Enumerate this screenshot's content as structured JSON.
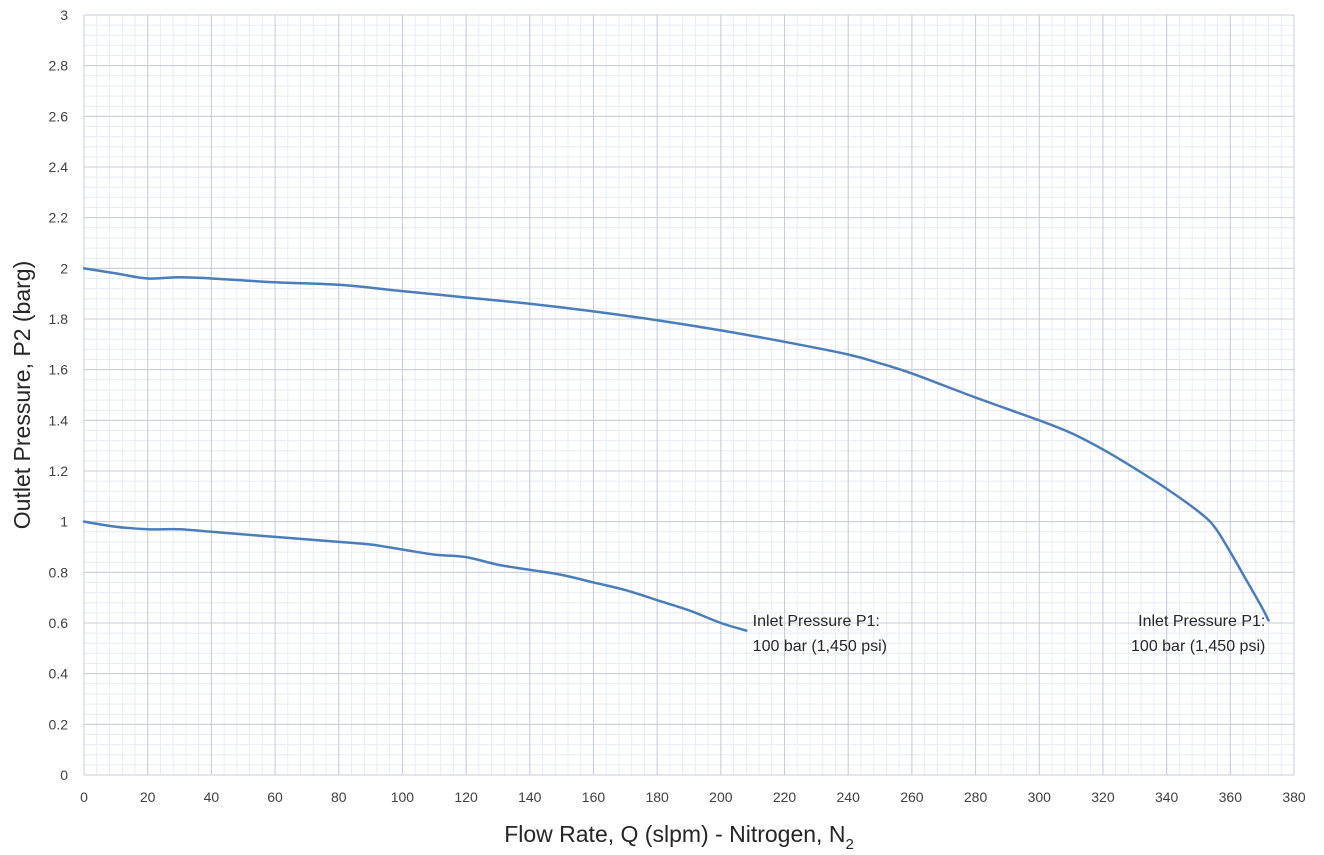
{
  "chart_data": {
    "type": "line",
    "title": "",
    "xlabel": "Flow Rate, Q (slpm) - Nitrogen, N",
    "xlabel_subscript": "2",
    "ylabel": "Outlet Pressure, P2 (barg)",
    "xlim": [
      0,
      380
    ],
    "ylim": [
      0,
      3
    ],
    "x_ticks": [
      "0",
      "20",
      "40",
      "60",
      "80",
      "100",
      "120",
      "140",
      "160",
      "180",
      "200",
      "220",
      "240",
      "260",
      "280",
      "300",
      "320",
      "340",
      "360",
      "380"
    ],
    "y_ticks": [
      "0",
      "0.2",
      "0.4",
      "0.6",
      "0.8",
      "1",
      "1.2",
      "1.4",
      "1.6",
      "1.8",
      "2",
      "2.2",
      "2.4",
      "2.6",
      "2.8",
      "3"
    ],
    "x_tick_values": [
      0,
      20,
      40,
      60,
      80,
      100,
      120,
      140,
      160,
      180,
      200,
      220,
      240,
      260,
      280,
      300,
      320,
      340,
      360,
      380
    ],
    "y_tick_values": [
      0,
      0.2,
      0.4,
      0.6,
      0.8,
      1,
      1.2,
      1.4,
      1.6,
      1.8,
      2,
      2.2,
      2.4,
      2.6,
      2.8,
      3
    ],
    "grid": true,
    "minor_grid": true,
    "legend": "none",
    "series_color": "#4a7ebb",
    "series": [
      {
        "x": [
          0,
          10,
          20,
          30,
          40,
          60,
          80,
          100,
          120,
          140,
          160,
          180,
          200,
          220,
          240,
          250,
          260,
          280,
          300,
          310,
          320,
          330,
          340,
          350,
          355,
          360,
          365,
          370,
          372
        ],
        "y": [
          2.0,
          1.98,
          1.96,
          1.965,
          1.96,
          1.945,
          1.935,
          1.91,
          1.885,
          1.86,
          1.83,
          1.795,
          1.755,
          1.71,
          1.66,
          1.625,
          1.585,
          1.49,
          1.4,
          1.35,
          1.285,
          1.21,
          1.13,
          1.04,
          0.98,
          0.88,
          0.77,
          0.66,
          0.61
        ]
      },
      {
        "x": [
          0,
          10,
          20,
          30,
          40,
          60,
          80,
          90,
          100,
          110,
          120,
          130,
          140,
          150,
          160,
          170,
          180,
          190,
          200,
          208
        ],
        "y": [
          1.0,
          0.98,
          0.97,
          0.97,
          0.96,
          0.94,
          0.92,
          0.91,
          0.89,
          0.87,
          0.86,
          0.83,
          0.81,
          0.79,
          0.76,
          0.73,
          0.69,
          0.65,
          0.6,
          0.57
        ]
      }
    ],
    "annotations": [
      {
        "lines": [
          "Inlet Pressure P1:",
          "100 bar (1,450 psi)"
        ],
        "x": 210,
        "y": 0.54,
        "anchor": "start"
      },
      {
        "lines": [
          "Inlet Pressure P1:",
          "100 bar (1,450 psi)"
        ],
        "x": 371,
        "y": 0.54,
        "anchor": "end"
      }
    ]
  }
}
